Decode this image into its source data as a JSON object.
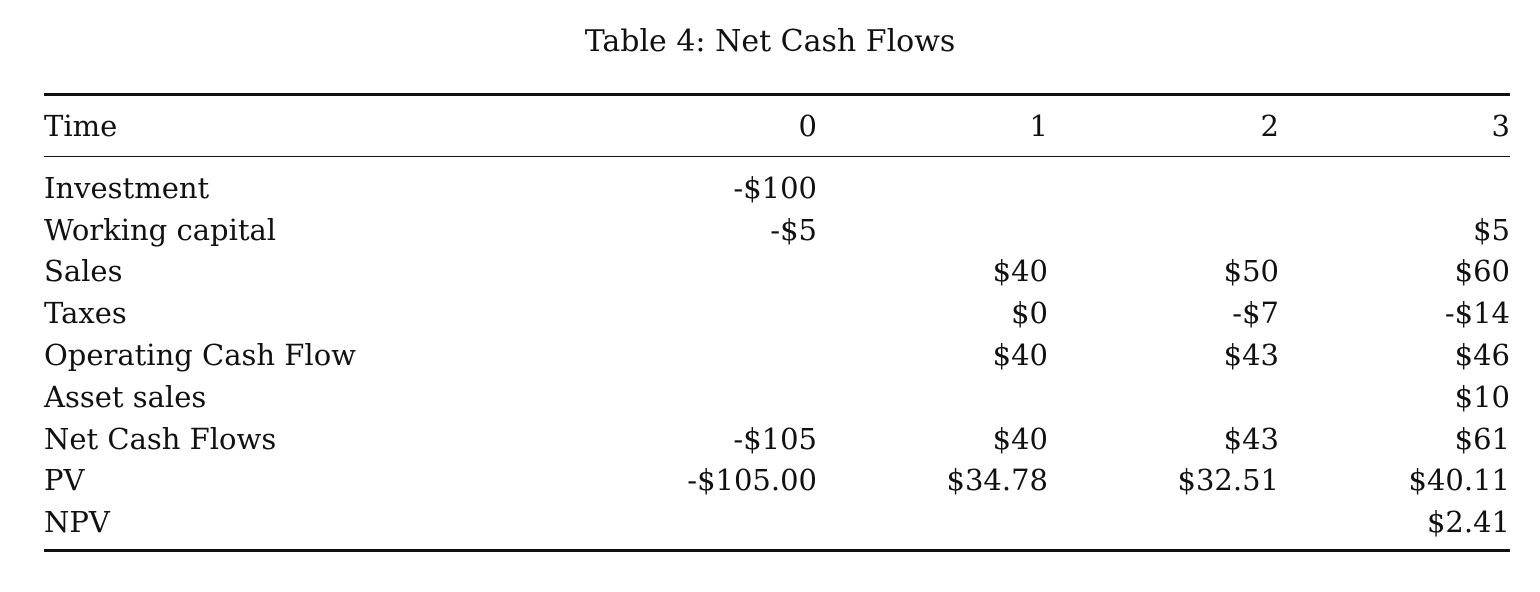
{
  "caption": "Table 4: Net Cash Flows",
  "table": {
    "headers": [
      "Time",
      "0",
      "1",
      "2",
      "3"
    ],
    "rows": [
      [
        "Investment",
        "-$100",
        "",
        "",
        ""
      ],
      [
        "Working capital",
        "-$5",
        "",
        "",
        "$5"
      ],
      [
        "Sales",
        "",
        "$40",
        "$50",
        "$60"
      ],
      [
        "Taxes",
        "",
        "$0",
        "-$7",
        "-$14"
      ],
      [
        "Operating Cash Flow",
        "",
        "$40",
        "$43",
        "$46"
      ],
      [
        "Asset sales",
        "",
        "",
        "",
        "$10"
      ],
      [
        "Net Cash Flows",
        "-$105",
        "$40",
        "$43",
        "$61"
      ],
      [
        "PV",
        "-$105.00",
        "$34.78",
        "$32.51",
        "$40.11"
      ],
      [
        "NPV",
        "",
        "",
        "",
        "$2.41"
      ]
    ]
  }
}
